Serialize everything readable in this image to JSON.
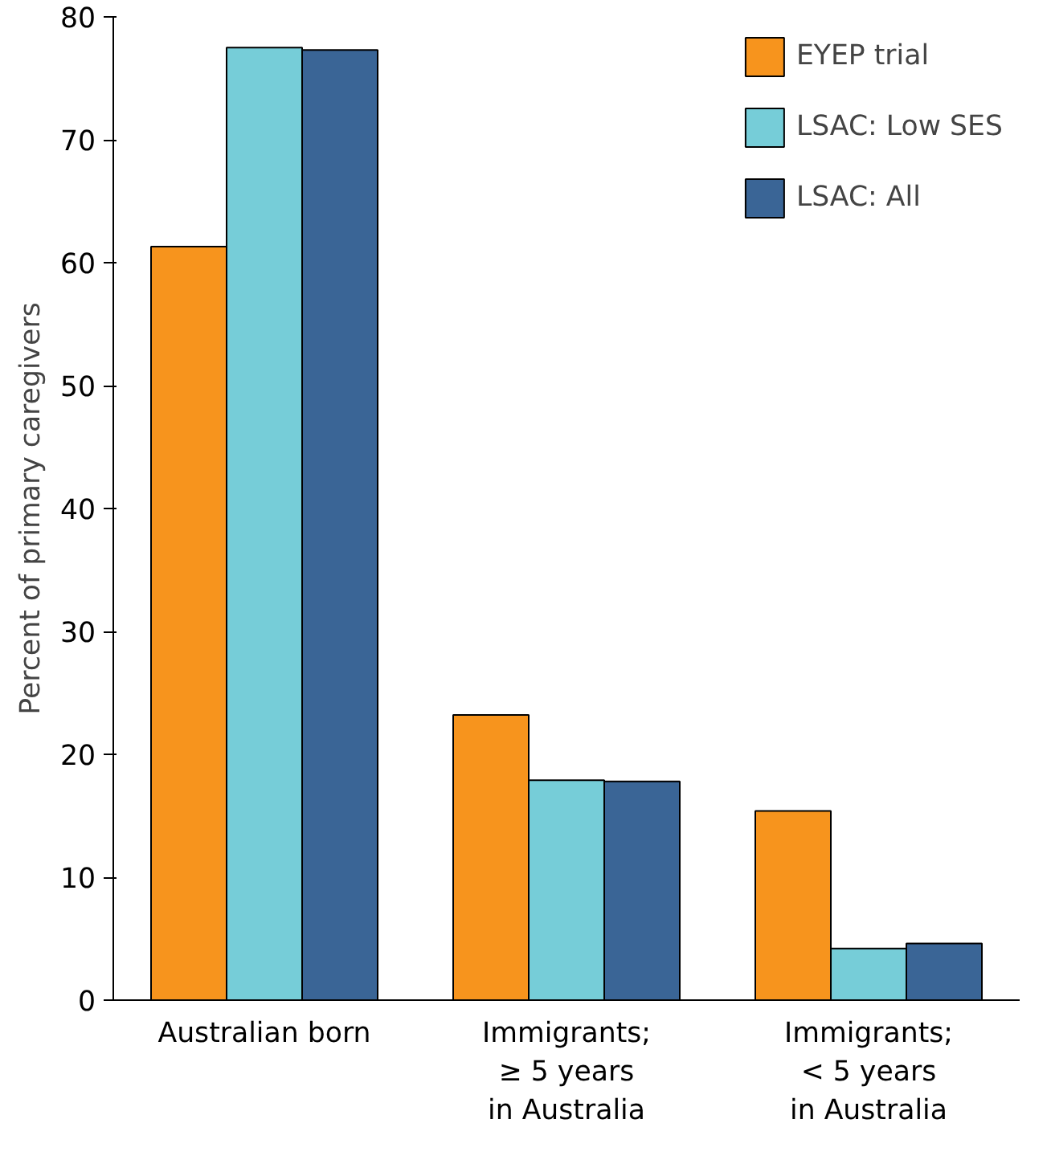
{
  "chart_data": {
    "type": "bar",
    "ylabel": "Percent of primary caregivers",
    "categories": [
      "Australian born",
      "Immigrants;\n≥ 5 years\nin Australia",
      "Immigrants;\n< 5 years\nin Australia"
    ],
    "series": [
      {
        "name": "EYEP trial",
        "color": "#f7941d",
        "values": [
          61.3,
          23.2,
          15.4
        ]
      },
      {
        "name": "LSAC: Low SES",
        "color": "#76cdd8",
        "values": [
          77.5,
          17.9,
          4.2
        ]
      },
      {
        "name": "LSAC: All",
        "color": "#3a6596",
        "values": [
          77.3,
          17.8,
          4.6
        ]
      }
    ],
    "ylim": [
      0,
      80
    ],
    "yticks": [
      0,
      10,
      20,
      30,
      40,
      50,
      60,
      70,
      80
    ],
    "grid": false,
    "legend": "top right"
  }
}
